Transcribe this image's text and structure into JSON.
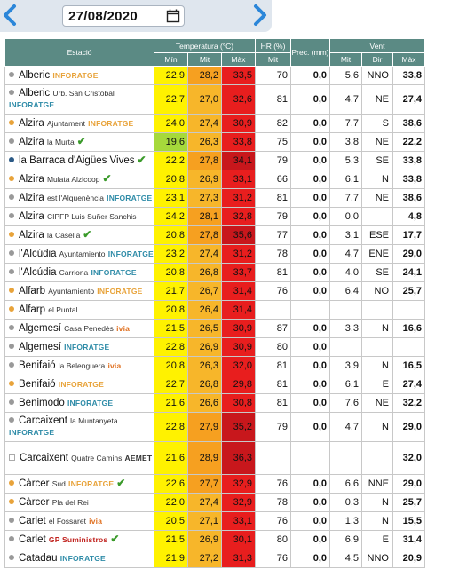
{
  "date": "27/08/2020",
  "headers": {
    "station": "Estació",
    "temperature": "Temperatura (°C)",
    "humidity": "HR (%)",
    "precip": "Prec. (mm)",
    "wind": "Vent",
    "t_min": "Mín",
    "t_mit": "Mit",
    "t_max": "Màx",
    "hr_mit": "Mit",
    "w_mit": "Mit",
    "w_dir": "Dir",
    "w_max": "Màx"
  },
  "colors": {
    "header": "#5b8a84",
    "min_yellow": "#fff200",
    "min_green": "#a6d93b",
    "mit_orange": "#f6a020",
    "mit_orange_light": "#f7b62a",
    "max_red": "#e81e1e",
    "max_darkred": "#c8171c",
    "check": "#3a9a2a"
  },
  "rows": [
    {
      "name": "Alberic",
      "sub": "",
      "brand": "INFORATGE",
      "brand_color": "#e8a33a",
      "dot": "#999999",
      "check": false,
      "tmin": "22,9",
      "tmit": "28,2",
      "tmax": "33,5",
      "min_bg": "#fff200",
      "mit_bg": "#f6a020",
      "max_bg": "#e81e1e",
      "hr": "70",
      "prec": "0,0",
      "wmit": "5,6",
      "wdir": "NNO",
      "wmax": "33,8",
      "h": 21
    },
    {
      "name": "Alberic",
      "sub": "Urb. San Cristóbal",
      "brand": "INFORATGE",
      "brand_color": "#2f8ca8",
      "dot": "#999999",
      "check": false,
      "tmin": "22,7",
      "tmit": "27,0",
      "tmax": "32,6",
      "min_bg": "#fff200",
      "mit_bg": "#f7b62a",
      "max_bg": "#e81e1e",
      "hr": "81",
      "prec": "0,0",
      "wmit": "4,7",
      "wdir": "NE",
      "wmax": "27,4",
      "h": 33
    },
    {
      "name": "Alzira",
      "sub": "Ajuntament",
      "brand": "INFORATGE",
      "brand_color": "#e8a33a",
      "dot": "#e8a33a",
      "check": false,
      "tmin": "24,0",
      "tmit": "27,4",
      "tmax": "30,9",
      "min_bg": "#fff200",
      "mit_bg": "#f7b62a",
      "max_bg": "#e81e1e",
      "hr": "82",
      "prec": "0,0",
      "wmit": "7,7",
      "wdir": "S",
      "wmax": "38,6",
      "h": 21
    },
    {
      "name": "Alzira",
      "sub": "la Murta",
      "brand": "",
      "brand_color": "",
      "dot": "#999999",
      "check": true,
      "tmin": "19,6",
      "tmit": "26,3",
      "tmax": "33,8",
      "min_bg": "#a6d93b",
      "mit_bg": "#f7b62a",
      "max_bg": "#e81e1e",
      "hr": "75",
      "prec": "0,0",
      "wmit": "3,8",
      "wdir": "NE",
      "wmax": "22,2",
      "h": 21
    },
    {
      "name": "la Barraca d'Aigües Vives",
      "sub": "",
      "brand": "",
      "brand_color": "",
      "dot": "#2c5a86",
      "check": true,
      "tmin": "22,2",
      "tmit": "27,8",
      "tmax": "34,1",
      "min_bg": "#fff200",
      "mit_bg": "#f6a020",
      "max_bg": "#c8171c",
      "hr": "79",
      "prec": "0,0",
      "wmit": "5,3",
      "wdir": "SE",
      "wmax": "33,8",
      "h": 21
    },
    {
      "name": "Alzira",
      "sub": "Mulata Alzicoop",
      "brand": "",
      "brand_color": "",
      "dot": "#e8a33a",
      "check": true,
      "tmin": "20,8",
      "tmit": "26,9",
      "tmax": "33,1",
      "min_bg": "#fff200",
      "mit_bg": "#f7b62a",
      "max_bg": "#e81e1e",
      "hr": "66",
      "prec": "0,0",
      "wmit": "6,1",
      "wdir": "N",
      "wmax": "33,8",
      "h": 21
    },
    {
      "name": "Alzira",
      "sub": "est l'Alquenència",
      "brand": "INFORATGE",
      "brand_color": "#2f8ca8",
      "dot": "#999999",
      "check": false,
      "tmin": "23,1",
      "tmit": "27,3",
      "tmax": "31,2",
      "min_bg": "#fff200",
      "mit_bg": "#f7b62a",
      "max_bg": "#e81e1e",
      "hr": "81",
      "prec": "0,0",
      "wmit": "7,7",
      "wdir": "NE",
      "wmax": "38,6",
      "h": 21
    },
    {
      "name": "Alzira",
      "sub": "CIPFP Luis Suñer Sanchis",
      "brand": "",
      "brand_color": "",
      "dot": "#999999",
      "check": false,
      "tmin": "24,2",
      "tmit": "28,1",
      "tmax": "32,8",
      "min_bg": "#fff200",
      "mit_bg": "#f6a020",
      "max_bg": "#e81e1e",
      "hr": "79",
      "prec": "0,0",
      "wmit": "0,0",
      "wdir": "",
      "wmax": "4,8",
      "h": 21
    },
    {
      "name": "Alzira",
      "sub": "la Casella",
      "brand": "",
      "brand_color": "",
      "dot": "#e8a33a",
      "check": true,
      "tmin": "20,8",
      "tmit": "27,8",
      "tmax": "35,6",
      "min_bg": "#fff200",
      "mit_bg": "#f6a020",
      "max_bg": "#c8171c",
      "hr": "77",
      "prec": "0,0",
      "wmit": "3,1",
      "wdir": "ESE",
      "wmax": "17,7",
      "h": 21
    },
    {
      "name": "l'Alcúdia",
      "sub": "Ayuntamiento",
      "brand": "INFORATGE",
      "brand_color": "#2f8ca8",
      "dot": "#999999",
      "check": false,
      "tmin": "23,2",
      "tmit": "27,4",
      "tmax": "31,2",
      "min_bg": "#fff200",
      "mit_bg": "#f7b62a",
      "max_bg": "#e81e1e",
      "hr": "78",
      "prec": "0,0",
      "wmit": "4,7",
      "wdir": "ENE",
      "wmax": "29,0",
      "h": 21
    },
    {
      "name": "l'Alcúdia",
      "sub": "Carriona",
      "brand": "INFORATGE",
      "brand_color": "#2f8ca8",
      "dot": "#999999",
      "check": false,
      "tmin": "20,8",
      "tmit": "26,8",
      "tmax": "33,7",
      "min_bg": "#fff200",
      "mit_bg": "#f7b62a",
      "max_bg": "#e81e1e",
      "hr": "81",
      "prec": "0,0",
      "wmit": "4,0",
      "wdir": "SE",
      "wmax": "24,1",
      "h": 21
    },
    {
      "name": "Alfarb",
      "sub": "Ayuntamiento",
      "brand": "INFORATGE",
      "brand_color": "#e8a33a",
      "dot": "#e8a33a",
      "check": false,
      "tmin": "21,7",
      "tmit": "26,7",
      "tmax": "31,4",
      "min_bg": "#fff200",
      "mit_bg": "#f7b62a",
      "max_bg": "#e81e1e",
      "hr": "76",
      "prec": "0,0",
      "wmit": "6,4",
      "wdir": "NO",
      "wmax": "25,7",
      "h": 21
    },
    {
      "name": "Alfarp",
      "sub": "el Puntal",
      "brand": "",
      "brand_color": "",
      "dot": "#e8a33a",
      "check": false,
      "tmin": "20,8",
      "tmit": "26,4",
      "tmax": "31,4",
      "min_bg": "#fff200",
      "mit_bg": "#f7b62a",
      "max_bg": "#e81e1e",
      "hr": "",
      "prec": "",
      "wmit": "",
      "wdir": "",
      "wmax": "",
      "h": 21
    },
    {
      "name": "Algemesí",
      "sub": "Casa Penedès",
      "brand": "ivia",
      "brand_color": "#e07020",
      "dot": "#999999",
      "check": false,
      "tmin": "21,5",
      "tmit": "26,5",
      "tmax": "30,9",
      "min_bg": "#fff200",
      "mit_bg": "#f7b62a",
      "max_bg": "#e81e1e",
      "hr": "87",
      "prec": "0,0",
      "wmit": "3,3",
      "wdir": "N",
      "wmax": "16,6",
      "h": 21
    },
    {
      "name": "Algemesí",
      "sub": "",
      "brand": "INFORATGE",
      "brand_color": "#2f8ca8",
      "dot": "#999999",
      "check": false,
      "tmin": "22,8",
      "tmit": "26,9",
      "tmax": "30,9",
      "min_bg": "#fff200",
      "mit_bg": "#f7b62a",
      "max_bg": "#e81e1e",
      "hr": "80",
      "prec": "0,0",
      "wmit": "",
      "wdir": "",
      "wmax": "",
      "h": 21
    },
    {
      "name": "Benifaió",
      "sub": "la Belenguera",
      "brand": "ivia",
      "brand_color": "#e07020",
      "dot": "#999999",
      "check": false,
      "tmin": "20,8",
      "tmit": "26,3",
      "tmax": "32,0",
      "min_bg": "#fff200",
      "mit_bg": "#f7b62a",
      "max_bg": "#e81e1e",
      "hr": "81",
      "prec": "0,0",
      "wmit": "3,9",
      "wdir": "N",
      "wmax": "16,5",
      "h": 21
    },
    {
      "name": "Benifaió",
      "sub": "",
      "brand": "INFORATGE",
      "brand_color": "#e8a33a",
      "dot": "#e8a33a",
      "check": false,
      "tmin": "22,7",
      "tmit": "26,8",
      "tmax": "29,8",
      "min_bg": "#fff200",
      "mit_bg": "#f7b62a",
      "max_bg": "#e81e1e",
      "hr": "81",
      "prec": "0,0",
      "wmit": "6,1",
      "wdir": "E",
      "wmax": "27,4",
      "h": 21
    },
    {
      "name": "Benimodo",
      "sub": "",
      "brand": "INFORATGE",
      "brand_color": "#2f8ca8",
      "dot": "#999999",
      "check": false,
      "tmin": "21,6",
      "tmit": "26,6",
      "tmax": "30,8",
      "min_bg": "#fff200",
      "mit_bg": "#f7b62a",
      "max_bg": "#e81e1e",
      "hr": "81",
      "prec": "0,0",
      "wmit": "7,6",
      "wdir": "NE",
      "wmax": "32,2",
      "h": 21
    },
    {
      "name": "Carcaixent",
      "sub": "la Muntanyeta",
      "brand": "INFORATGE",
      "brand_color": "#2f8ca8",
      "dot": "#999999",
      "check": false,
      "tmin": "22,8",
      "tmit": "27,9",
      "tmax": "35,2",
      "min_bg": "#fff200",
      "mit_bg": "#f6a020",
      "max_bg": "#c8171c",
      "hr": "79",
      "prec": "0,0",
      "wmit": "4,7",
      "wdir": "N",
      "wmax": "29,0",
      "h": 33
    },
    {
      "name": "Carcaixent",
      "sub": "Quatre Camins",
      "brand": "AEMET",
      "brand_color": "#333333",
      "dot": "",
      "check": false,
      "tmin": "21,6",
      "tmit": "28,9",
      "tmax": "36,3",
      "min_bg": "#fff200",
      "mit_bg": "#f6a020",
      "max_bg": "#c8171c",
      "hr": "",
      "prec": "",
      "wmit": "",
      "wdir": "",
      "wmax": "32,0",
      "h": 37
    },
    {
      "name": "Càrcer",
      "sub": "Sud",
      "brand": "INFORATGE",
      "brand_color": "#e8a33a",
      "dot": "#e8a33a",
      "check": true,
      "tmin": "22,6",
      "tmit": "27,7",
      "tmax": "32,9",
      "min_bg": "#fff200",
      "mit_bg": "#f6a020",
      "max_bg": "#e81e1e",
      "hr": "76",
      "prec": "0,0",
      "wmit": "6,6",
      "wdir": "NNE",
      "wmax": "29,0",
      "h": 21
    },
    {
      "name": "Càrcer",
      "sub": "Pla del Rei",
      "brand": "",
      "brand_color": "",
      "dot": "#e8a33a",
      "check": false,
      "tmin": "22,0",
      "tmit": "27,4",
      "tmax": "32,9",
      "min_bg": "#fff200",
      "mit_bg": "#f7b62a",
      "max_bg": "#e81e1e",
      "hr": "78",
      "prec": "0,0",
      "wmit": "0,3",
      "wdir": "N",
      "wmax": "25,7",
      "h": 21
    },
    {
      "name": "Carlet",
      "sub": "el Fossaret",
      "brand": "ivia",
      "brand_color": "#e07020",
      "dot": "#999999",
      "check": false,
      "tmin": "20,5",
      "tmit": "27,1",
      "tmax": "33,1",
      "min_bg": "#fff200",
      "mit_bg": "#f7b62a",
      "max_bg": "#e81e1e",
      "hr": "76",
      "prec": "0,0",
      "wmit": "1,3",
      "wdir": "N",
      "wmax": "15,5",
      "h": 21
    },
    {
      "name": "Carlet",
      "sub": "",
      "brand": "GP Suministros",
      "brand_color": "#c0201c",
      "dot": "#999999",
      "check": true,
      "tmin": "21,5",
      "tmit": "26,9",
      "tmax": "30,1",
      "min_bg": "#fff200",
      "mit_bg": "#f7b62a",
      "max_bg": "#e81e1e",
      "hr": "80",
      "prec": "0,0",
      "wmit": "6,9",
      "wdir": "E",
      "wmax": "31,4",
      "h": 21
    },
    {
      "name": "Catadau",
      "sub": "",
      "brand": "INFORATGE",
      "brand_color": "#2f8ca8",
      "dot": "#999999",
      "check": false,
      "tmin": "21,9",
      "tmit": "27,2",
      "tmax": "31,3",
      "min_bg": "#fff200",
      "mit_bg": "#f7b62a",
      "max_bg": "#e81e1e",
      "hr": "76",
      "prec": "0,0",
      "wmit": "4,5",
      "wdir": "NNO",
      "wmax": "20,9",
      "h": 21
    }
  ]
}
